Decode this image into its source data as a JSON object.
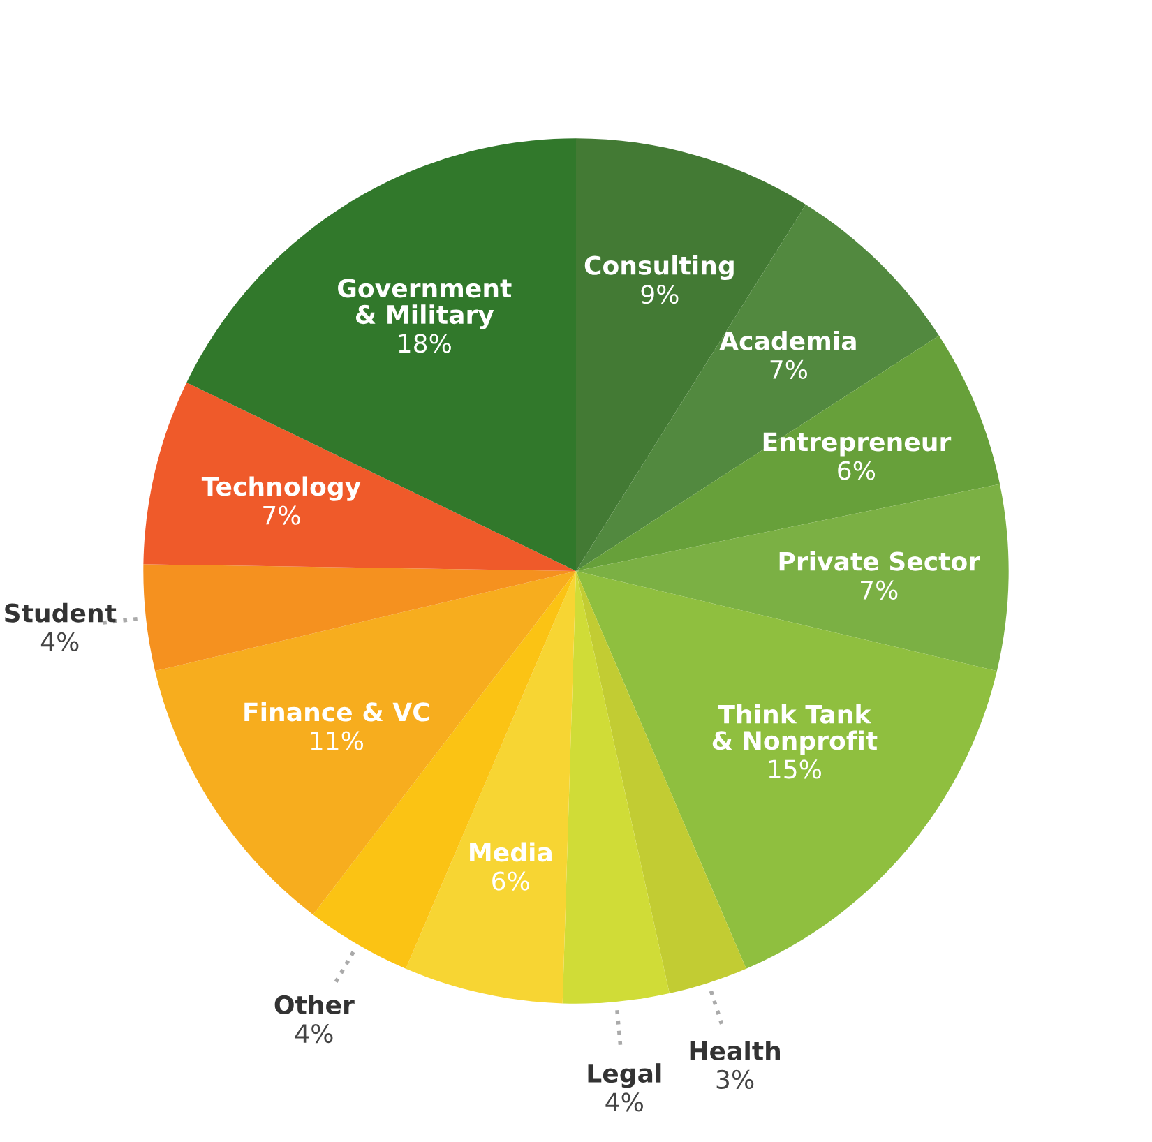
{
  "chart_data": {
    "type": "pie",
    "categories": [
      "Consulting",
      "Academia",
      "Entrepreneur",
      "Private Sector",
      "Think Tank\n& Nonprofit",
      "Health",
      "Legal",
      "Media",
      "Other",
      "Finance & VC",
      "Student",
      "Technology",
      "Government\n& Military"
    ],
    "values": [
      9,
      7,
      6,
      7,
      15,
      3,
      4,
      6,
      4,
      11,
      4,
      7,
      18
    ],
    "value_labels": [
      "9%",
      "7%",
      "6%",
      "7%",
      "15%",
      "3%",
      "4%",
      "6%",
      "4%",
      "11%",
      "4%",
      "7%",
      "18%"
    ],
    "colors": [
      "#437a34",
      "#52893f",
      "#67a03a",
      "#7bb044",
      "#8fbf3f",
      "#c2cc33",
      "#d0dc37",
      "#f7d533",
      "#fbc314",
      "#f7ad1e",
      "#f5911f",
      "#ef5a2a",
      "#31782b"
    ]
  }
}
